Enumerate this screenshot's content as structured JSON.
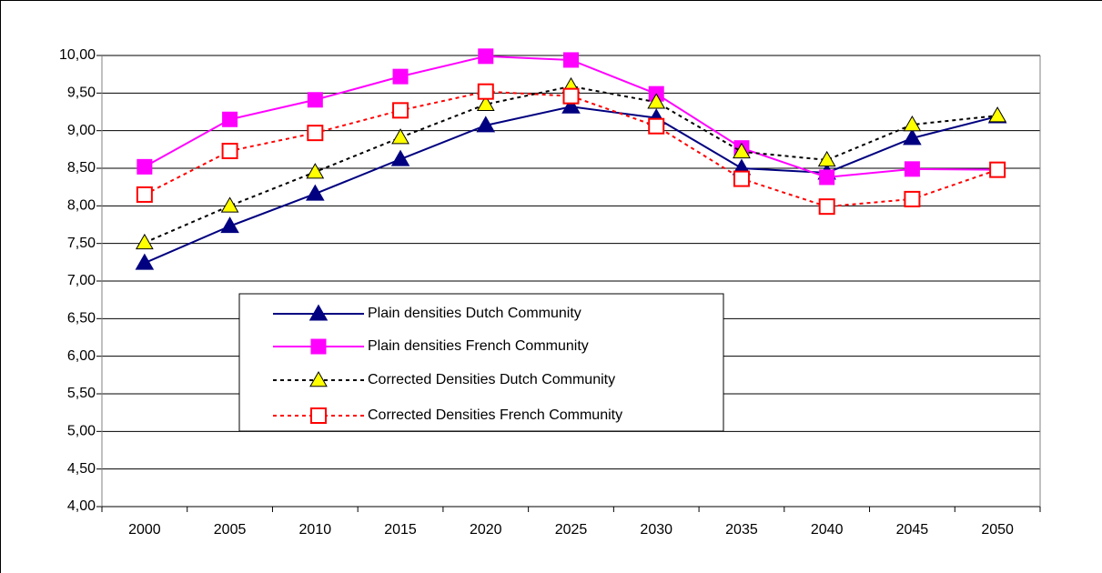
{
  "chart_data": {
    "type": "line",
    "categories": [
      "2000",
      "2005",
      "2010",
      "2015",
      "2020",
      "2025",
      "2030",
      "2035",
      "2040",
      "2045",
      "2050"
    ],
    "series": [
      {
        "name": "Plain densities Dutch Community",
        "color": "#000080",
        "marker": "triangle",
        "marker_fill": "#000080",
        "dashed": false,
        "values": [
          7.24,
          7.73,
          8.16,
          8.62,
          9.07,
          9.32,
          9.17,
          8.5,
          8.44,
          8.9,
          9.19
        ]
      },
      {
        "name": "Plain densities French Community",
        "color": "#ff00ff",
        "marker": "square",
        "marker_fill": "#ff00ff",
        "dashed": false,
        "values": [
          8.52,
          9.15,
          9.41,
          9.72,
          9.99,
          9.94,
          9.49,
          8.77,
          8.38,
          8.49,
          8.48
        ]
      },
      {
        "name": "Corrected Densities Dutch Community",
        "color": "#000000",
        "marker": "triangle",
        "marker_fill": "#ffff00",
        "dashed": true,
        "values": [
          7.51,
          8.0,
          8.45,
          8.91,
          9.35,
          9.59,
          9.38,
          8.72,
          8.61,
          9.08,
          9.2
        ]
      },
      {
        "name": "Corrected Densities French Community",
        "color": "#ff0000",
        "marker": "square",
        "marker_fill": "#ffffff",
        "dashed": true,
        "values": [
          8.15,
          8.73,
          8.97,
          9.27,
          9.52,
          9.46,
          9.06,
          8.36,
          7.99,
          8.09,
          8.48
        ]
      }
    ],
    "ylim": [
      4,
      10
    ],
    "yticks": [
      {
        "value": 4,
        "label": "4,00"
      },
      {
        "value": 4.5,
        "label": "4,50"
      },
      {
        "value": 5,
        "label": "5,00"
      },
      {
        "value": 5.5,
        "label": "5,50"
      },
      {
        "value": 6,
        "label": "6,00"
      },
      {
        "value": 6.5,
        "label": "6,50"
      },
      {
        "value": 7,
        "label": "7,00"
      },
      {
        "value": 7.5,
        "label": "7,50"
      },
      {
        "value": 8,
        "label": "8,00"
      },
      {
        "value": 8.5,
        "label": "8,50"
      },
      {
        "value": 9,
        "label": "9,00"
      },
      {
        "value": 9.5,
        "label": "9,50"
      },
      {
        "value": 10,
        "label": "10,00"
      }
    ],
    "grid": true
  }
}
